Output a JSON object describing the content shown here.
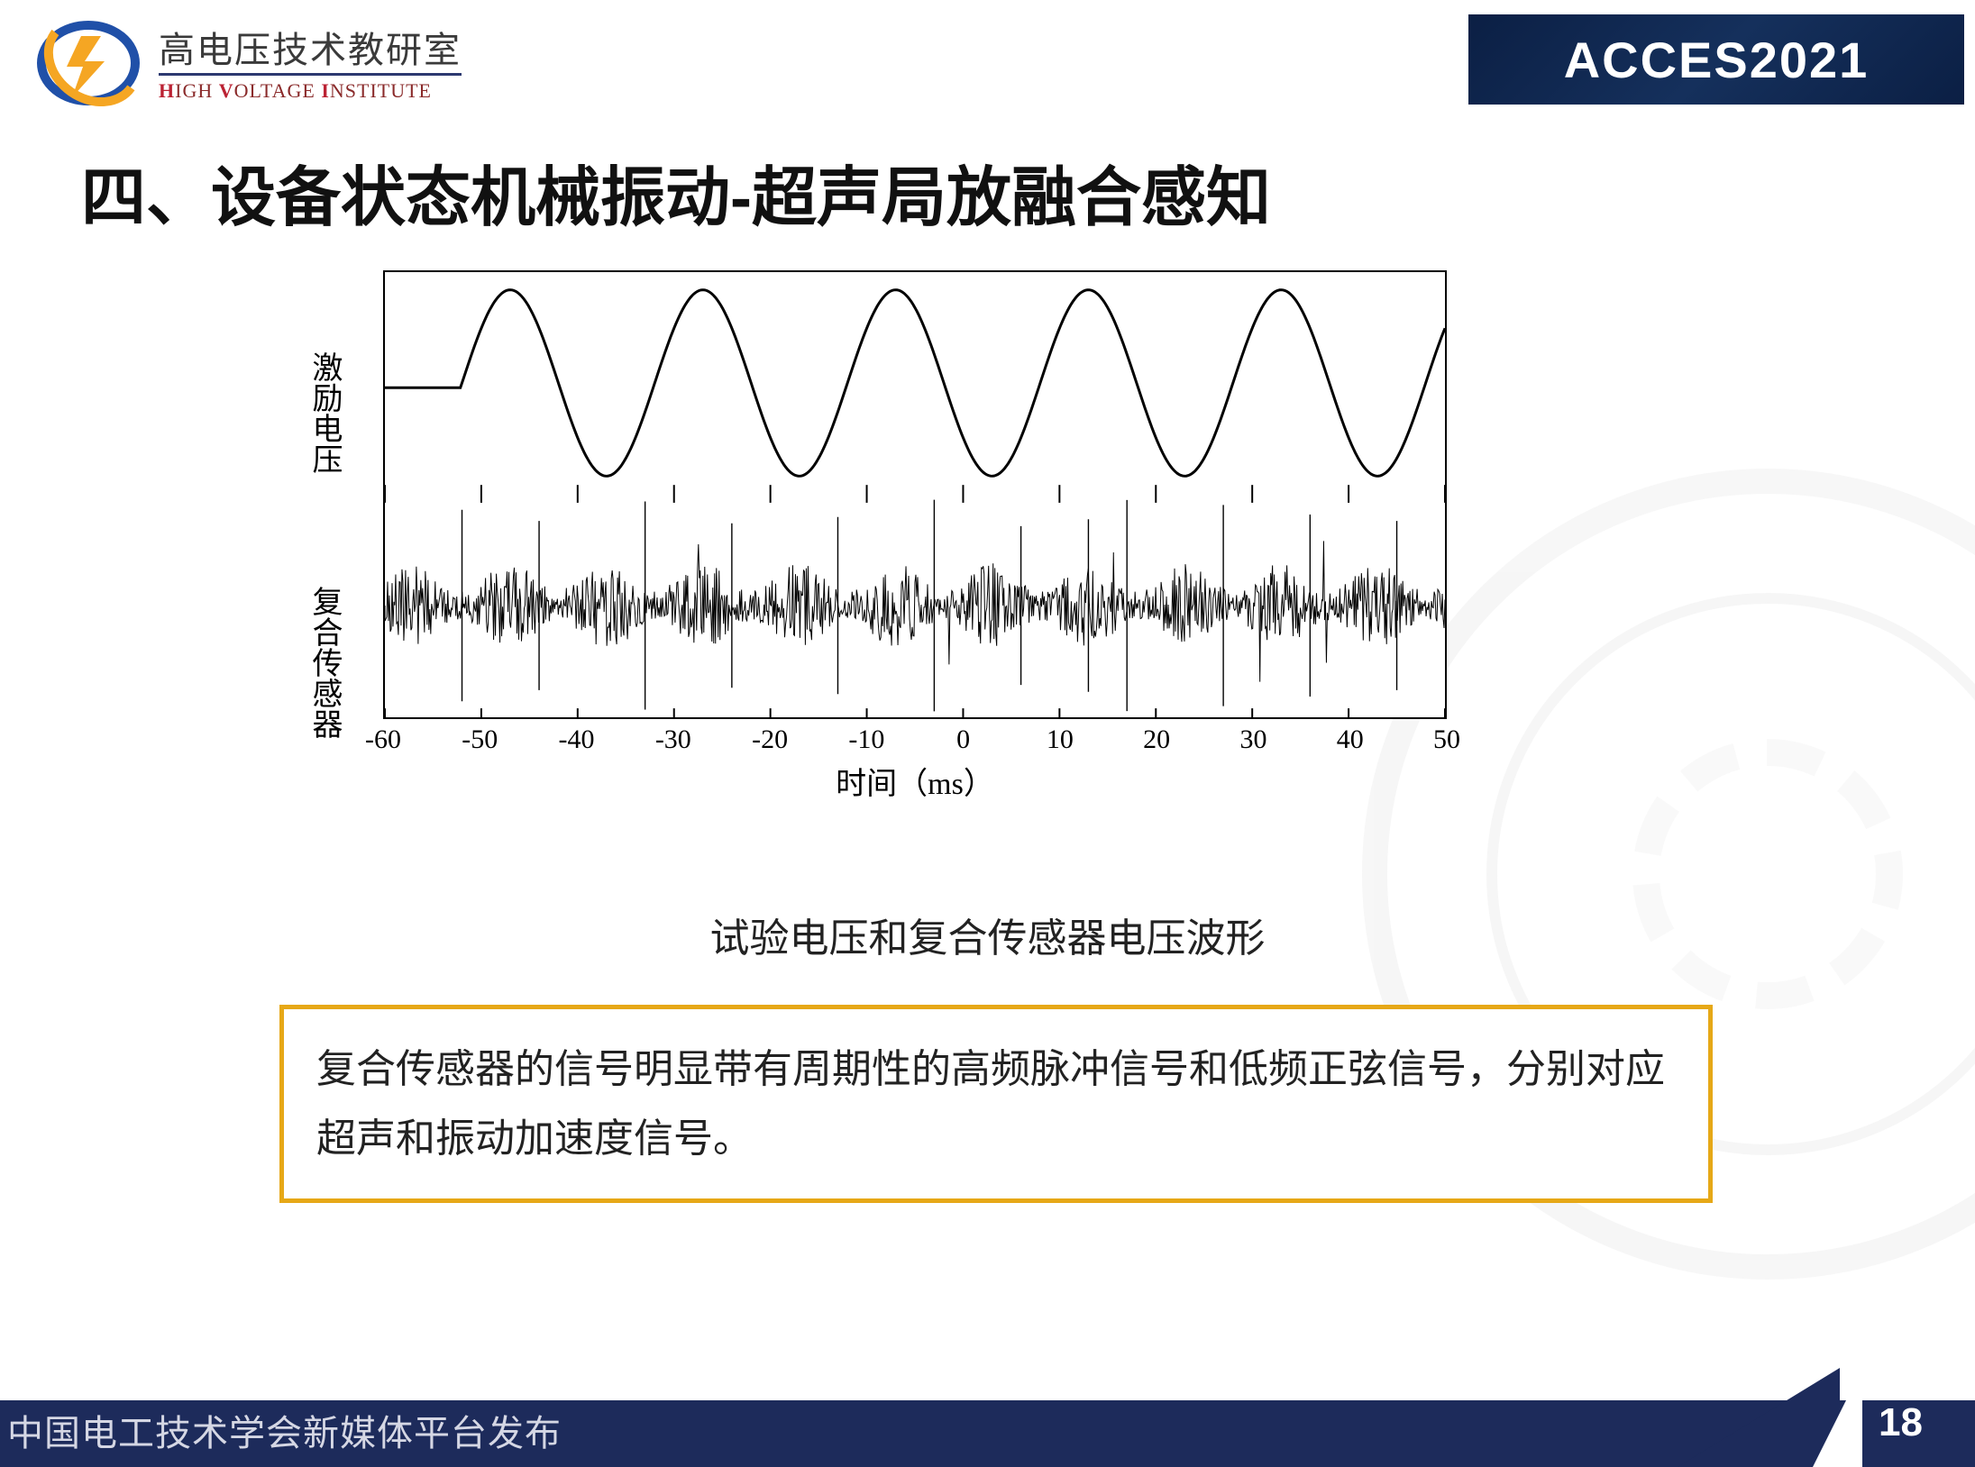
{
  "header": {
    "org_cn": "高电压技术教研室",
    "org_en_parts": [
      "H",
      "IGH ",
      "V",
      "OLTAGE ",
      "I",
      "NSTITUTE"
    ],
    "brand_left": "ACCES",
    "brand_right": "2021"
  },
  "heading": "四、设备状态机械振动-超声局放融合感知",
  "chart": {
    "panel1_label": "激励电压",
    "panel2_label": "复合传感器",
    "xaxis_label": "时间（ms）",
    "xticks": [
      "-60",
      "-50",
      "-40",
      "-30",
      "-20",
      "-10",
      "0",
      "10",
      "20",
      "30",
      "40",
      "50"
    ],
    "xlim": [
      -60,
      50
    ],
    "panel1": {
      "type": "line",
      "line_color": "#000000",
      "line_width": 3,
      "cycles": 5,
      "period_ms": 20,
      "phase_start_ms": -52
    },
    "panel2": {
      "type": "signal",
      "line_color": "#000000",
      "burst_period_ms": 10,
      "noise_amp": 0.38,
      "spike_amp": 0.92
    }
  },
  "caption": "试验电压和复合传感器电压波形",
  "callout": "复合传感器的信号明显带有周期性的高频脉冲信号和低频正弦信号，分别对应超声和振动加速度信号。",
  "footer": {
    "publisher": "中国电工技术学会新媒体平台发布",
    "page": "18"
  },
  "colors": {
    "footer_bg": "#1d2b5b",
    "callout_border": "#e6a817",
    "text": "#222222",
    "watermark": "#e8e8e8"
  }
}
